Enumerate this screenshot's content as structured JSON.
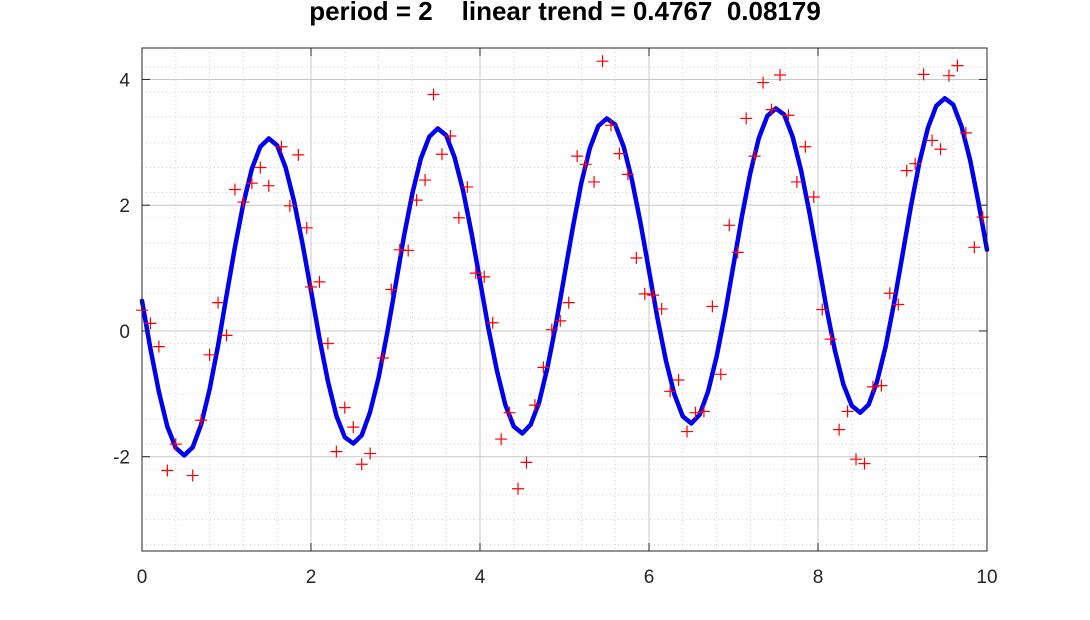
{
  "chart_data": {
    "type": "scatter",
    "title": "period = 2    linear trend = 0.4767  0.08179",
    "xlabel": "",
    "ylabel": "",
    "xlim": [
      0,
      10
    ],
    "ylim": [
      -3.5,
      4.5
    ],
    "xticks": [
      0,
      2,
      4,
      6,
      8,
      10
    ],
    "xtick_labels": [
      "0",
      "2",
      "4",
      "6",
      "8",
      "10"
    ],
    "yticks": [
      -2,
      0,
      2,
      4
    ],
    "ytick_labels": [
      "-2",
      "0",
      "2",
      "4"
    ],
    "grid": true,
    "minor_grid": true,
    "colors": {
      "fit": "#0000ee",
      "points": "#ff0000",
      "grid": "#d0d0d0"
    },
    "series": [
      {
        "kind": "fit_line",
        "model": "y = 0.4767 + 0.08179*x + 2.5*sin(pi*x)",
        "x": [
          0.0,
          0.1,
          0.2,
          0.3,
          0.4,
          0.5,
          0.6,
          0.7,
          0.8,
          0.9,
          1.0,
          1.1,
          1.2,
          1.3,
          1.4,
          1.5,
          1.6,
          1.7,
          1.8,
          1.9,
          2.0,
          2.1,
          2.2,
          2.3,
          2.4,
          2.5,
          2.6,
          2.7,
          2.8,
          2.9,
          3.0,
          3.1,
          3.2,
          3.3,
          3.4,
          3.5,
          3.6,
          3.7,
          3.8,
          3.9,
          4.0,
          4.1,
          4.2,
          4.3,
          4.4,
          4.5,
          4.6,
          4.7,
          4.8,
          4.9,
          5.0,
          5.1,
          5.2,
          5.3,
          5.4,
          5.5,
          5.6,
          5.7,
          5.8,
          5.9,
          6.0,
          6.1,
          6.2,
          6.3,
          6.4,
          6.5,
          6.6,
          6.7,
          6.8,
          6.9,
          7.0,
          7.1,
          7.2,
          7.3,
          7.4,
          7.5,
          7.6,
          7.7,
          7.8,
          7.9,
          8.0,
          8.1,
          8.2,
          8.3,
          8.4,
          8.5,
          8.6,
          8.7,
          8.8,
          8.9,
          9.0,
          9.1,
          9.2,
          9.3,
          9.4,
          9.5,
          9.6,
          9.7,
          9.8,
          9.9,
          10.0
        ],
        "y": [
          0.48,
          -0.28,
          -0.97,
          -1.52,
          -1.86,
          -1.98,
          -1.85,
          -1.49,
          -0.93,
          -0.23,
          0.56,
          1.34,
          2.03,
          2.58,
          2.93,
          3.06,
          2.95,
          2.6,
          2.06,
          1.38,
          0.64,
          -0.12,
          -0.8,
          -1.35,
          -1.69,
          -1.79,
          -1.66,
          -1.29,
          -0.74,
          -0.05,
          0.72,
          1.5,
          2.19,
          2.74,
          3.09,
          3.22,
          3.11,
          2.76,
          2.23,
          1.55,
          0.8,
          0.04,
          -0.63,
          -1.18,
          -1.52,
          -1.63,
          -1.49,
          -1.13,
          -0.57,
          0.11,
          0.89,
          1.66,
          2.36,
          2.91,
          3.26,
          3.38,
          3.28,
          2.93,
          2.39,
          1.71,
          0.96,
          0.2,
          -0.47,
          -1.01,
          -1.36,
          -1.47,
          -1.33,
          -0.96,
          -0.41,
          0.28,
          1.05,
          1.82,
          2.52,
          3.07,
          3.42,
          3.54,
          3.44,
          3.09,
          2.55,
          1.87,
          1.13,
          0.37,
          -0.31,
          -0.85,
          -1.19,
          -1.3,
          -1.17,
          -0.8,
          -0.25,
          0.44,
          1.21,
          1.98,
          2.68,
          3.23,
          3.58,
          3.7,
          3.6,
          3.25,
          2.72,
          2.04,
          1.29
        ]
      },
      {
        "kind": "points",
        "marker": "+",
        "x": [
          0.0,
          0.1,
          0.2,
          0.3,
          0.4,
          0.6,
          0.7,
          0.8,
          0.9,
          1.0,
          1.1,
          1.2,
          1.3,
          1.4,
          1.5,
          1.65,
          1.75,
          1.85,
          1.95,
          2.0,
          2.1,
          2.2,
          2.3,
          2.4,
          2.5,
          2.6,
          2.7,
          2.85,
          2.95,
          3.05,
          3.15,
          3.25,
          3.35,
          3.45,
          3.55,
          3.65,
          3.75,
          3.85,
          3.95,
          4.05,
          4.15,
          4.25,
          4.35,
          4.45,
          4.55,
          4.65,
          4.75,
          4.85,
          4.95,
          5.05,
          5.15,
          5.25,
          5.35,
          5.45,
          5.55,
          5.65,
          5.75,
          5.85,
          5.95,
          6.05,
          6.15,
          6.25,
          6.35,
          6.45,
          6.55,
          6.65,
          6.75,
          6.85,
          6.95,
          7.05,
          7.15,
          7.25,
          7.35,
          7.45,
          7.55,
          7.65,
          7.75,
          7.85,
          7.95,
          8.05,
          8.15,
          8.25,
          8.35,
          8.45,
          8.55,
          8.65,
          8.75,
          8.85,
          8.95,
          9.05,
          9.15,
          9.25,
          9.35,
          9.45,
          9.55,
          9.65,
          9.75,
          9.85,
          9.95
        ],
        "y": [
          0.33,
          0.12,
          -0.25,
          -2.22,
          -1.8,
          -2.3,
          -1.42,
          -0.38,
          0.45,
          -0.07,
          2.25,
          2.05,
          2.35,
          2.6,
          2.31,
          2.93,
          1.99,
          2.8,
          1.64,
          0.7,
          0.78,
          -0.2,
          -1.92,
          -1.22,
          -1.53,
          -2.12,
          -1.95,
          -0.43,
          0.66,
          1.29,
          1.28,
          2.08,
          2.4,
          3.76,
          2.81,
          3.1,
          1.8,
          2.29,
          0.92,
          0.86,
          0.13,
          -1.72,
          -1.3,
          -2.51,
          -2.09,
          -1.18,
          -0.58,
          0.02,
          0.16,
          0.45,
          2.78,
          2.65,
          2.37,
          4.29,
          3.27,
          2.82,
          2.49,
          1.16,
          0.59,
          0.57,
          0.35,
          -0.96,
          -0.78,
          -1.6,
          -1.3,
          -1.28,
          0.39,
          -0.69,
          1.68,
          1.25,
          3.38,
          2.78,
          3.95,
          3.52,
          4.07,
          3.43,
          2.37,
          2.93,
          2.13,
          0.34,
          -0.13,
          -1.57,
          -1.28,
          -2.04,
          -2.11,
          -0.89,
          -0.87,
          0.6,
          0.42,
          2.55,
          2.66,
          4.08,
          3.03,
          2.89,
          4.06,
          4.22,
          3.15,
          1.33,
          1.81
        ]
      }
    ]
  }
}
